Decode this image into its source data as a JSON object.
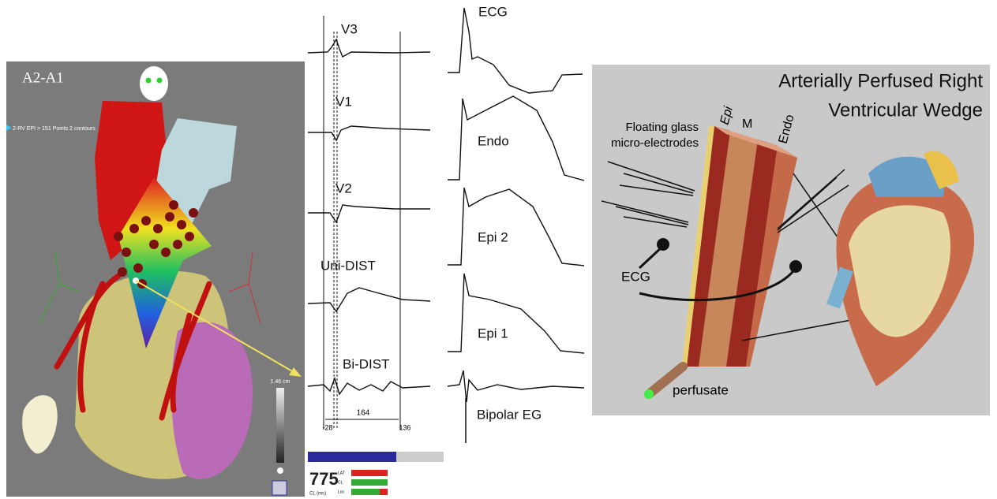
{
  "left_panel": {
    "view_label": "A2-A1",
    "map_label": "2-RV EPI > 151 Points 2 contours",
    "scale_label": "1.46 cm",
    "cycle_length": "775",
    "cycle_length_unit": "CL (ms)",
    "indicators": [
      "LAT",
      "CL",
      "Loc"
    ]
  },
  "middle_panel": {
    "traces": [
      "V3",
      "V1",
      "V2",
      "Uni-DIST",
      "Bi-DIST"
    ],
    "interval": "164",
    "markers": [
      "-28",
      "136"
    ]
  },
  "ap_panel": {
    "traces": [
      "ECG",
      "Endo",
      "Epi 2",
      "Epi 1",
      "Bipolar EG"
    ]
  },
  "wedge_panel": {
    "title_lines": [
      "Arterially Perfused Right",
      "Ventricular Wedge"
    ],
    "electrodes_label_lines": [
      "Floating glass",
      "micro-electrodes"
    ],
    "layers": [
      "Epi",
      "M",
      "Endo"
    ],
    "ecg_label": "ECG",
    "perfusate_label": "perfusate"
  }
}
